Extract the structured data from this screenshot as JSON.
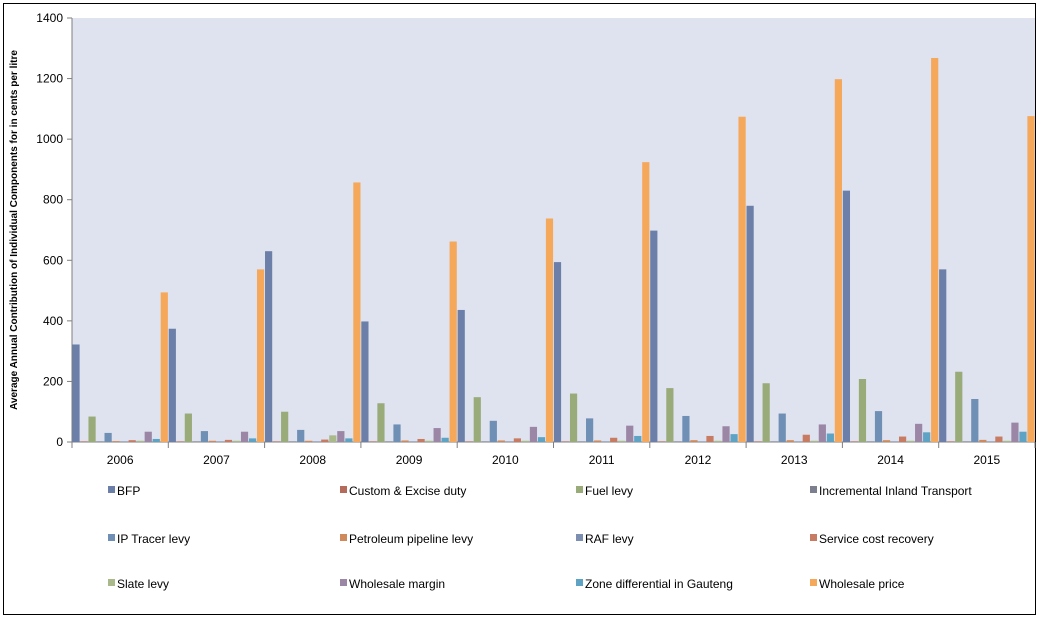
{
  "chart_data": {
    "type": "bar",
    "title": "",
    "xlabel": "",
    "ylabel": "Average Annual Contribution of Individual Components for  in cents per litre",
    "ylim": [
      0,
      1400
    ],
    "yticks": [
      0,
      200,
      400,
      600,
      800,
      1000,
      1200,
      1400
    ],
    "grid": false,
    "legend_position": "bottom",
    "plot_background": "#dfe3ef",
    "categories": [
      "2006",
      "2007",
      "2008",
      "2009",
      "2010",
      "2011",
      "2012",
      "2013",
      "2014",
      "2015"
    ],
    "series": [
      {
        "name": "BFP",
        "color": "#6b7fa8",
        "values": [
          322,
          374,
          630,
          398,
          436,
          594,
          698,
          780,
          830,
          570
        ]
      },
      {
        "name": "Custom & Excise duty",
        "color": "#b56b5a",
        "values": [
          2,
          2,
          2,
          2,
          2,
          2,
          2,
          2,
          2,
          2
        ]
      },
      {
        "name": "Fuel levy",
        "color": "#9aab7a",
        "values": [
          84,
          94,
          100,
          128,
          148,
          160,
          178,
          194,
          208,
          232
        ]
      },
      {
        "name": "Incremental Inland Transport",
        "color": "#7b7f8e",
        "values": [
          2,
          2,
          2,
          2,
          2,
          2,
          2,
          2,
          2,
          2
        ]
      },
      {
        "name": "IP Tracer levy",
        "color": "#6f8fb5",
        "values": [
          30,
          36,
          40,
          58,
          70,
          78,
          86,
          94,
          102,
          142
        ]
      },
      {
        "name": "Petroleum pipeline levy",
        "color": "#d0895a",
        "values": [
          3,
          4,
          4,
          5,
          5,
          5,
          6,
          6,
          6,
          7
        ]
      },
      {
        "name": "RAF levy",
        "color": "#7d8fb0",
        "values": [
          2,
          2,
          2,
          2,
          2,
          2,
          2,
          2,
          2,
          2
        ]
      },
      {
        "name": "Service cost recovery",
        "color": "#c77b62",
        "values": [
          6,
          7,
          8,
          10,
          12,
          14,
          20,
          24,
          18,
          18
        ]
      },
      {
        "name": "Slate levy",
        "color": "#a9b98a",
        "values": [
          4,
          4,
          22,
          4,
          4,
          4,
          4,
          4,
          4,
          4
        ]
      },
      {
        "name": "Wholesale margin",
        "color": "#9b86a6",
        "values": [
          34,
          34,
          36,
          46,
          50,
          54,
          52,
          58,
          60,
          64
        ]
      },
      {
        "name": "Zone differential in Gauteng",
        "color": "#5fa3c4",
        "values": [
          10,
          12,
          12,
          14,
          16,
          20,
          26,
          28,
          32,
          34
        ]
      },
      {
        "name": "Wholesale price",
        "color": "#f5a85a",
        "values": [
          494,
          570,
          857,
          662,
          738,
          924,
          1074,
          1198,
          1268,
          1076
        ]
      }
    ]
  }
}
